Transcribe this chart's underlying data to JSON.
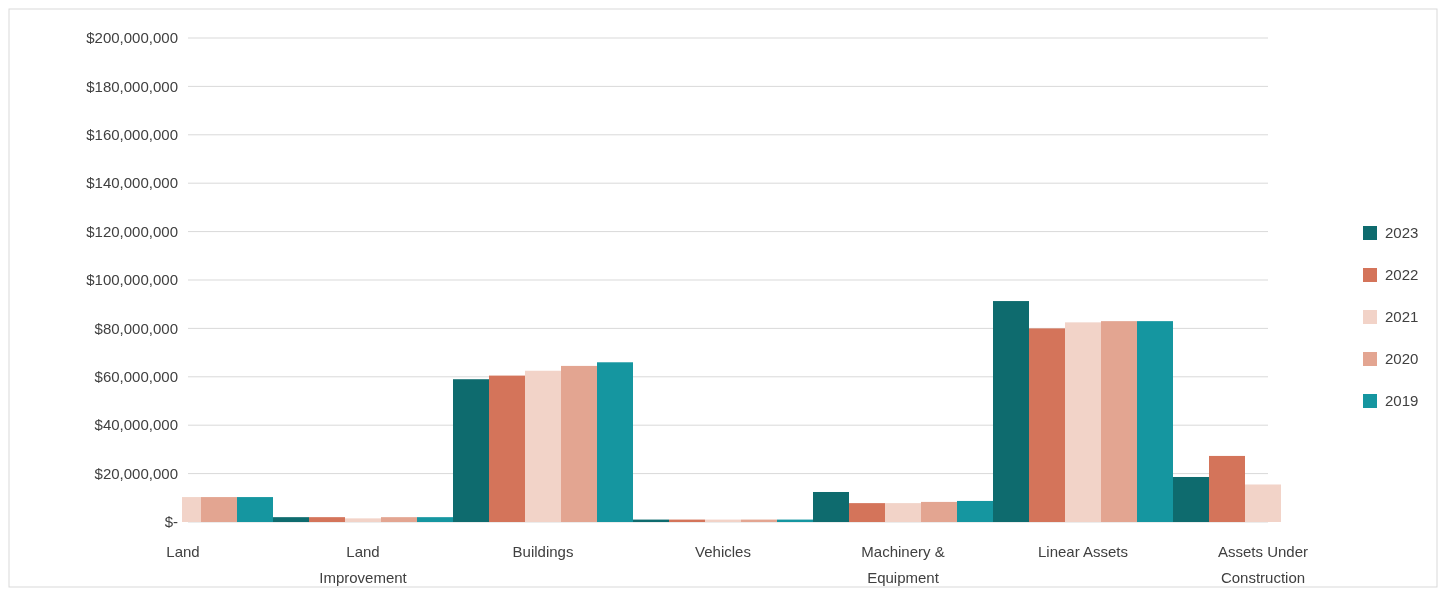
{
  "chart_data": {
    "type": "bar",
    "categories": [
      "Land",
      "Land Improvement",
      "Buildings",
      "Vehicles",
      "Machinery & Equipment",
      "Linear Assets",
      "Assets Under Construction"
    ],
    "series": [
      {
        "name": "2023",
        "color": "#0e6b6e",
        "values": [
          null,
          2000000,
          59000000,
          1000000,
          12400000,
          91300000,
          18600000
        ]
      },
      {
        "name": "2022",
        "color": "#d4745a",
        "values": [
          null,
          2000000,
          60500000,
          1000000,
          7800000,
          80000000,
          27300000
        ]
      },
      {
        "name": "2021",
        "color": "#f2d3c8",
        "values": [
          10300000,
          1500000,
          62500000,
          1000000,
          7800000,
          82500000,
          15500000
        ]
      },
      {
        "name": "2020",
        "color": "#e3a591",
        "values": [
          10300000,
          2000000,
          64500000,
          1000000,
          8300000,
          83000000,
          null
        ]
      },
      {
        "name": "2019",
        "color": "#1596a0",
        "values": [
          10300000,
          2000000,
          66000000,
          1000000,
          8700000,
          83000000,
          null
        ]
      }
    ],
    "ylim": [
      0,
      200000000
    ],
    "yticks": [
      {
        "value": 0,
        "label": "$-"
      },
      {
        "value": 20000000,
        "label": "$20,000,000"
      },
      {
        "value": 40000000,
        "label": "$40,000,000"
      },
      {
        "value": 60000000,
        "label": "$60,000,000"
      },
      {
        "value": 80000000,
        "label": "$80,000,000"
      },
      {
        "value": 100000000,
        "label": "$100,000,000"
      },
      {
        "value": 120000000,
        "label": "$120,000,000"
      },
      {
        "value": 140000000,
        "label": "$140,000,000"
      },
      {
        "value": 160000000,
        "label": "$160,000,000"
      },
      {
        "value": 180000000,
        "label": "$180,000,000"
      },
      {
        "value": 200000000,
        "label": "$200,000,000"
      }
    ],
    "grid": "y",
    "legend": "right"
  }
}
